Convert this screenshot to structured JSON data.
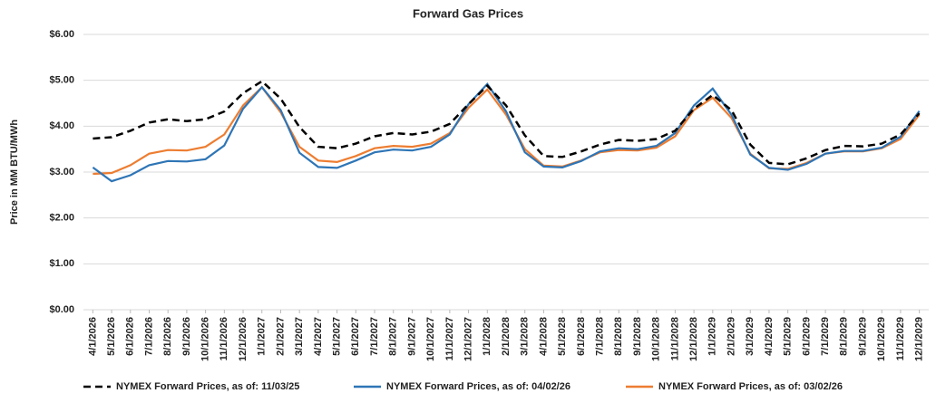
{
  "chart_data": {
    "type": "line",
    "title": "Forward Gas Prices",
    "y_label": "Price in MM BTU/MWh",
    "categories": [
      "4/1/2026",
      "5/1/2026",
      "6/1/2026",
      "7/1/2026",
      "8/1/2026",
      "9/1/2026",
      "10/1/2026",
      "11/1/2026",
      "12/1/2026",
      "1/1/2027",
      "2/1/2027",
      "3/1/2027",
      "4/1/2027",
      "5/1/2027",
      "6/1/2027",
      "7/1/2027",
      "8/1/2027",
      "9/1/2027",
      "10/1/2027",
      "11/1/2027",
      "12/1/2027",
      "1/1/2028",
      "2/1/2028",
      "3/1/2028",
      "4/1/2028",
      "5/1/2028",
      "6/1/2028",
      "7/1/2028",
      "8/1/2028",
      "9/1/2028",
      "10/1/2028",
      "11/1/2028",
      "12/1/2028",
      "1/1/2029",
      "2/1/2029",
      "3/1/2029",
      "4/1/2029",
      "5/1/2029",
      "6/1/2029",
      "7/1/2029",
      "8/1/2029",
      "9/1/2029",
      "10/1/2029",
      "11/1/2029",
      "12/1/2029"
    ],
    "series": [
      {
        "name": "NYMEX Forward Prices, as of: 11/03/25",
        "color": "#000000",
        "dashed": true,
        "values": [
          3.73,
          3.76,
          3.9,
          4.08,
          4.15,
          4.11,
          4.15,
          4.32,
          4.72,
          4.98,
          4.6,
          3.98,
          3.55,
          3.52,
          3.62,
          3.78,
          3.85,
          3.82,
          3.88,
          4.05,
          4.48,
          4.88,
          4.45,
          3.8,
          3.35,
          3.33,
          3.45,
          3.6,
          3.7,
          3.68,
          3.72,
          3.9,
          4.38,
          4.68,
          4.35,
          3.6,
          3.2,
          3.17,
          3.3,
          3.48,
          3.57,
          3.56,
          3.62,
          3.82,
          4.28
        ]
      },
      {
        "name": "NYMEX Forward Prices, as of: 04/02/26",
        "color": "#2e75b6",
        "dashed": false,
        "values": [
          3.1,
          2.8,
          2.93,
          3.15,
          3.24,
          3.23,
          3.28,
          3.58,
          4.38,
          4.85,
          4.35,
          3.42,
          3.11,
          3.09,
          3.25,
          3.43,
          3.49,
          3.47,
          3.55,
          3.82,
          4.48,
          4.92,
          4.32,
          3.43,
          3.12,
          3.1,
          3.24,
          3.45,
          3.52,
          3.5,
          3.57,
          3.85,
          4.45,
          4.82,
          4.25,
          3.38,
          3.09,
          3.05,
          3.18,
          3.4,
          3.46,
          3.46,
          3.53,
          3.77,
          4.33
        ]
      },
      {
        "name": "NYMEX Forward Prices, as of: 03/02/26",
        "color": "#ed7d31",
        "dashed": false,
        "values": [
          2.96,
          2.98,
          3.15,
          3.4,
          3.48,
          3.47,
          3.55,
          3.82,
          4.45,
          4.85,
          4.3,
          3.55,
          3.25,
          3.22,
          3.35,
          3.52,
          3.57,
          3.55,
          3.62,
          3.85,
          4.4,
          4.8,
          4.25,
          3.5,
          3.14,
          3.12,
          3.25,
          3.43,
          3.48,
          3.47,
          3.53,
          3.78,
          4.35,
          4.62,
          4.18,
          3.4,
          3.08,
          3.07,
          3.2,
          3.4,
          3.45,
          3.45,
          3.52,
          3.72,
          4.25
        ]
      }
    ],
    "ylim": [
      0,
      6
    ],
    "yticks": [
      {
        "value": 0,
        "label": "$0.00"
      },
      {
        "value": 1,
        "label": "$1.00"
      },
      {
        "value": 2,
        "label": "$2.00"
      },
      {
        "value": 3,
        "label": "$3.00"
      },
      {
        "value": 4,
        "label": "$4.00"
      },
      {
        "value": 5,
        "label": "$5.00"
      },
      {
        "value": 6,
        "label": "$6.00"
      }
    ],
    "grid": true
  }
}
